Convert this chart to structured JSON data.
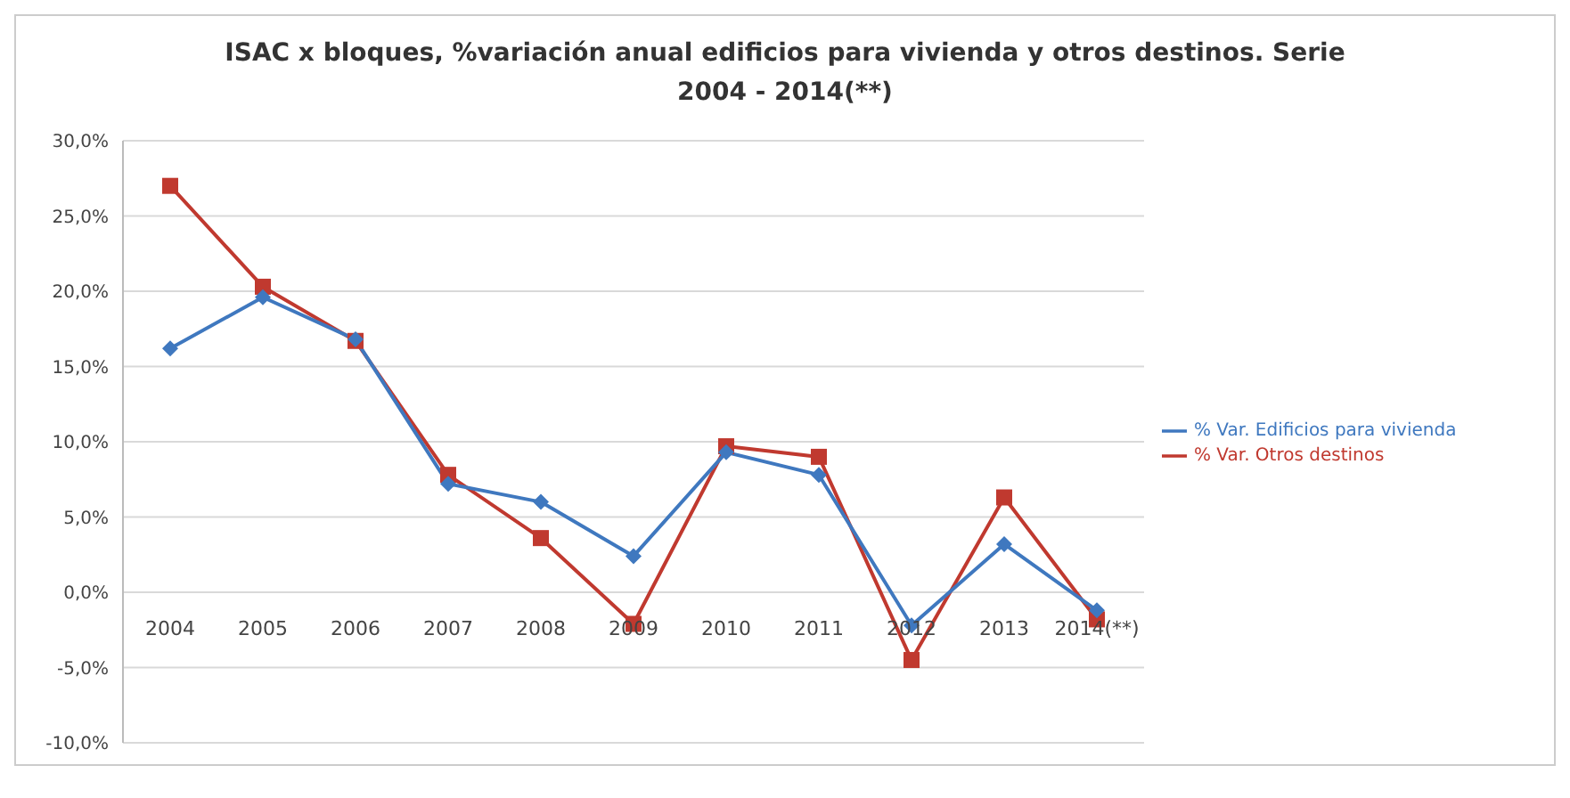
{
  "chart_data": {
    "type": "line",
    "title": "ISAC x bloques, %variación anual edificios para vivienda y otros destinos. Serie 2004 - 2014(**)",
    "categories": [
      "2004",
      "2005",
      "2006",
      "2007",
      "2008",
      "2009",
      "2010",
      "2011",
      "2012",
      "2013",
      "2014(**)"
    ],
    "series": [
      {
        "name": "% Var. Edificios para vivienda",
        "color": "#3f78bf",
        "marker": "diamond",
        "values": [
          16.2,
          19.6,
          16.8,
          7.2,
          6.0,
          2.4,
          9.3,
          7.8,
          -2.2,
          3.2,
          -1.2
        ]
      },
      {
        "name": "% Var. Otros destinos",
        "color": "#c0392f",
        "marker": "square",
        "values": [
          27.0,
          20.3,
          16.7,
          7.8,
          3.6,
          -2.1,
          9.7,
          9.0,
          -4.5,
          6.3,
          -1.8
        ]
      }
    ],
    "ylim": [
      -10,
      30
    ],
    "yticks": [
      {
        "value": -10,
        "label": "-10,0%"
      },
      {
        "value": -5,
        "label": "-5,0%"
      },
      {
        "value": 0,
        "label": "0,0%"
      },
      {
        "value": 5,
        "label": "5,0%"
      },
      {
        "value": 10,
        "label": "10,0%"
      },
      {
        "value": 15,
        "label": "15,0%"
      },
      {
        "value": 20,
        "label": "20,0%"
      },
      {
        "value": 25,
        "label": "25,0%"
      },
      {
        "value": 30,
        "label": "30,0%"
      }
    ],
    "grid": "y",
    "legend": "right"
  }
}
